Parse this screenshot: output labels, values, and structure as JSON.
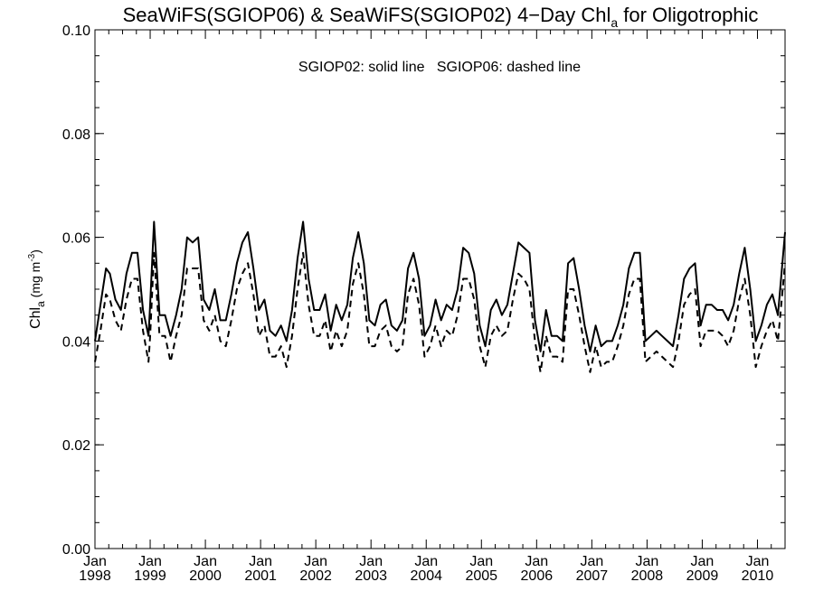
{
  "chart_data": {
    "type": "line",
    "title": {
      "main": "SeaWiFS(SGIOP06) & SeaWiFS(SGIOP02) 4−Day Chl",
      "subscript": "a",
      "suffix": " for Oligotrophic"
    },
    "annotation": "SGIOP02: solid line   SGIOP06: dashed line",
    "ylabel": {
      "text": "Chl",
      "subscript": "a",
      "units": " (mg m",
      "superscript": "-3",
      "close": ")"
    },
    "ylim": [
      0.0,
      0.1
    ],
    "yticks": [
      "0.00",
      "0.02",
      "0.04",
      "0.06",
      "0.08",
      "0.10"
    ],
    "xlim": [
      1998.0,
      2010.5
    ],
    "xticks": [
      {
        "year": 1998,
        "month": "Jan",
        "label": "1998"
      },
      {
        "year": 1999,
        "month": "Jan",
        "label": "1999"
      },
      {
        "year": 2000,
        "month": "Jan",
        "label": "2000"
      },
      {
        "year": 2001,
        "month": "Jan",
        "label": "2001"
      },
      {
        "year": 2002,
        "month": "Jan",
        "label": "2002"
      },
      {
        "year": 2003,
        "month": "Jan",
        "label": "2003"
      },
      {
        "year": 2004,
        "month": "Jan",
        "label": "2004"
      },
      {
        "year": 2005,
        "month": "Jan",
        "label": "2005"
      },
      {
        "year": 2006,
        "month": "Jan",
        "label": "2006"
      },
      {
        "year": 2007,
        "month": "Jan",
        "label": "2007"
      },
      {
        "year": 2008,
        "month": "Jan",
        "label": "2008"
      },
      {
        "year": 2009,
        "month": "Jan",
        "label": "2009"
      },
      {
        "year": 2010,
        "month": "Jan",
        "label": "2010"
      }
    ],
    "grid": false,
    "series": [
      {
        "name": "SGIOP02",
        "style": "solid",
        "color": "#000000",
        "x": [
          1998.0,
          1998.1,
          1998.2,
          1998.27,
          1998.37,
          1998.47,
          1998.57,
          1998.67,
          1998.77,
          1998.87,
          1998.97,
          1999.0,
          1999.07,
          1999.17,
          1999.27,
          1999.37,
          1999.47,
          1999.57,
          1999.67,
          1999.77,
          1999.87,
          1999.97,
          2000.07,
          2000.17,
          2000.27,
          2000.37,
          2000.47,
          2000.57,
          2000.67,
          2000.77,
          2000.87,
          2000.97,
          2001.07,
          2001.17,
          2001.27,
          2001.37,
          2001.47,
          2001.57,
          2001.67,
          2001.77,
          2001.87,
          2001.97,
          2002.07,
          2002.17,
          2002.27,
          2002.37,
          2002.47,
          2002.57,
          2002.67,
          2002.77,
          2002.87,
          2002.97,
          2003.07,
          2003.17,
          2003.27,
          2003.37,
          2003.47,
          2003.57,
          2003.67,
          2003.77,
          2003.87,
          2003.97,
          2004.07,
          2004.17,
          2004.27,
          2004.37,
          2004.47,
          2004.57,
          2004.67,
          2004.77,
          2004.87,
          2004.97,
          2005.07,
          2005.17,
          2005.27,
          2005.37,
          2005.47,
          2005.57,
          2005.67,
          2005.77,
          2005.87,
          2005.97,
          2006.07,
          2006.17,
          2006.27,
          2006.37,
          2006.47,
          2006.57,
          2006.67,
          2006.77,
          2006.87,
          2006.97,
          2007.07,
          2007.17,
          2007.27,
          2007.37,
          2007.47,
          2007.57,
          2007.67,
          2007.77,
          2007.87,
          2007.97,
          2008.07,
          2008.17,
          2008.27,
          2008.37,
          2008.47,
          2008.57,
          2008.67,
          2008.77,
          2008.87,
          2008.97,
          2009.07,
          2009.17,
          2009.27,
          2009.37,
          2009.47,
          2009.57,
          2009.67,
          2009.77,
          2009.87,
          2009.97,
          2010.07,
          2010.17,
          2010.27,
          2010.37,
          2010.5
        ],
        "y": [
          0.04,
          0.047,
          0.054,
          0.053,
          0.048,
          0.046,
          0.053,
          0.057,
          0.057,
          0.046,
          0.041,
          0.047,
          0.063,
          0.045,
          0.045,
          0.041,
          0.045,
          0.05,
          0.06,
          0.059,
          0.06,
          0.048,
          0.046,
          0.05,
          0.044,
          0.044,
          0.049,
          0.055,
          0.059,
          0.061,
          0.054,
          0.046,
          0.048,
          0.042,
          0.041,
          0.043,
          0.04,
          0.046,
          0.056,
          0.063,
          0.052,
          0.046,
          0.046,
          0.049,
          0.042,
          0.047,
          0.044,
          0.047,
          0.056,
          0.061,
          0.055,
          0.044,
          0.043,
          0.047,
          0.048,
          0.043,
          0.042,
          0.044,
          0.054,
          0.057,
          0.052,
          0.041,
          0.043,
          0.048,
          0.044,
          0.047,
          0.046,
          0.05,
          0.058,
          0.057,
          0.053,
          0.043,
          0.039,
          0.046,
          0.048,
          0.045,
          0.047,
          0.053,
          0.059,
          0.058,
          0.057,
          0.044,
          0.038,
          0.046,
          0.041,
          0.041,
          0.04,
          0.055,
          0.056,
          0.05,
          0.043,
          0.038,
          0.043,
          0.039,
          0.04,
          0.04,
          0.043,
          0.047,
          0.054,
          0.057,
          0.057,
          0.04,
          0.041,
          0.042,
          0.041,
          0.04,
          0.039,
          0.045,
          0.052,
          0.054,
          0.055,
          0.043,
          0.047,
          0.047,
          0.046,
          0.046,
          0.044,
          0.047,
          0.053,
          0.058,
          0.05,
          0.04,
          0.043,
          0.047,
          0.049,
          0.045,
          0.061
        ]
      },
      {
        "name": "SGIOP06",
        "style": "dashed",
        "color": "#000000",
        "x": [
          1998.0,
          1998.1,
          1998.2,
          1998.27,
          1998.37,
          1998.47,
          1998.57,
          1998.67,
          1998.77,
          1998.87,
          1998.97,
          1999.0,
          1999.07,
          1999.17,
          1999.27,
          1999.37,
          1999.47,
          1999.57,
          1999.67,
          1999.77,
          1999.87,
          1999.97,
          2000.07,
          2000.17,
          2000.27,
          2000.37,
          2000.47,
          2000.57,
          2000.67,
          2000.77,
          2000.87,
          2000.97,
          2001.07,
          2001.17,
          2001.27,
          2001.37,
          2001.47,
          2001.57,
          2001.67,
          2001.77,
          2001.87,
          2001.97,
          2002.07,
          2002.17,
          2002.27,
          2002.37,
          2002.47,
          2002.57,
          2002.67,
          2002.77,
          2002.87,
          2002.97,
          2003.07,
          2003.17,
          2003.27,
          2003.37,
          2003.47,
          2003.57,
          2003.67,
          2003.77,
          2003.87,
          2003.97,
          2004.07,
          2004.17,
          2004.27,
          2004.37,
          2004.47,
          2004.57,
          2004.67,
          2004.77,
          2004.87,
          2004.97,
          2005.07,
          2005.17,
          2005.27,
          2005.37,
          2005.47,
          2005.57,
          2005.67,
          2005.77,
          2005.87,
          2005.97,
          2006.07,
          2006.17,
          2006.27,
          2006.37,
          2006.47,
          2006.57,
          2006.67,
          2006.77,
          2006.87,
          2006.97,
          2007.07,
          2007.17,
          2007.27,
          2007.37,
          2007.47,
          2007.57,
          2007.67,
          2007.77,
          2007.87,
          2007.97,
          2008.07,
          2008.17,
          2008.27,
          2008.37,
          2008.47,
          2008.57,
          2008.67,
          2008.77,
          2008.87,
          2008.97,
          2009.07,
          2009.17,
          2009.27,
          2009.37,
          2009.47,
          2009.57,
          2009.67,
          2009.77,
          2009.87,
          2009.97,
          2010.07,
          2010.17,
          2010.27,
          2010.37,
          2010.5
        ],
        "y": [
          0.036,
          0.042,
          0.049,
          0.048,
          0.044,
          0.042,
          0.048,
          0.052,
          0.052,
          0.042,
          0.036,
          0.041,
          0.057,
          0.041,
          0.041,
          0.036,
          0.041,
          0.045,
          0.054,
          0.054,
          0.054,
          0.044,
          0.042,
          0.045,
          0.04,
          0.039,
          0.044,
          0.05,
          0.053,
          0.055,
          0.049,
          0.041,
          0.043,
          0.037,
          0.037,
          0.039,
          0.035,
          0.041,
          0.05,
          0.057,
          0.047,
          0.041,
          0.041,
          0.044,
          0.038,
          0.042,
          0.039,
          0.042,
          0.051,
          0.055,
          0.049,
          0.039,
          0.039,
          0.042,
          0.043,
          0.039,
          0.038,
          0.039,
          0.049,
          0.052,
          0.047,
          0.037,
          0.039,
          0.043,
          0.039,
          0.042,
          0.041,
          0.045,
          0.052,
          0.052,
          0.048,
          0.039,
          0.035,
          0.041,
          0.043,
          0.041,
          0.042,
          0.048,
          0.053,
          0.052,
          0.05,
          0.04,
          0.034,
          0.041,
          0.037,
          0.037,
          0.036,
          0.05,
          0.05,
          0.045,
          0.039,
          0.034,
          0.039,
          0.035,
          0.036,
          0.036,
          0.039,
          0.043,
          0.049,
          0.052,
          0.052,
          0.036,
          0.037,
          0.038,
          0.037,
          0.036,
          0.035,
          0.04,
          0.047,
          0.049,
          0.05,
          0.039,
          0.042,
          0.042,
          0.042,
          0.041,
          0.039,
          0.042,
          0.048,
          0.052,
          0.045,
          0.035,
          0.039,
          0.042,
          0.044,
          0.04,
          0.055
        ]
      }
    ]
  }
}
